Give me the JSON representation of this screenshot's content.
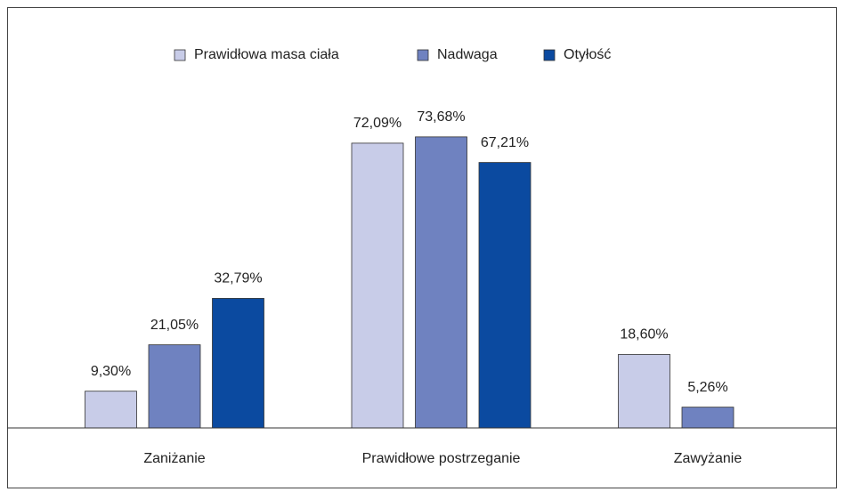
{
  "chart_data": {
    "type": "bar",
    "categories": [
      "Zaniżanie",
      "Prawidłowe postrzeganie",
      "Zawyżanie"
    ],
    "series": [
      {
        "name": "Prawidłowa masa ciała",
        "color": "#c8cce8",
        "values": [
          9.3,
          72.09,
          18.6
        ],
        "value_labels": [
          "9,30%",
          "72,09%",
          "18,60%"
        ]
      },
      {
        "name": "Nadwaga",
        "color": "#6f82c0",
        "values": [
          21.05,
          73.68,
          5.26
        ],
        "value_labels": [
          "21,05%",
          "73,68%",
          "5,26%"
        ]
      },
      {
        "name": "Otyłość",
        "color": "#0b4aa0",
        "values": [
          32.79,
          67.21,
          null
        ],
        "value_labels": [
          "32,79%",
          "67,21%",
          null
        ]
      }
    ],
    "legend": "top"
  }
}
